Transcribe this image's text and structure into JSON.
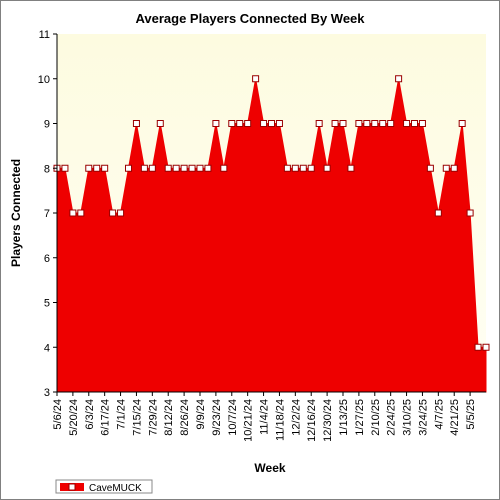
{
  "chart_data": {
    "type": "area",
    "title": "Average Players Connected By Week",
    "xlabel": "Week",
    "ylabel": "Players Connected",
    "ylim": [
      3,
      11
    ],
    "yticks": [
      3,
      4,
      5,
      6,
      7,
      8,
      9,
      10,
      11
    ],
    "grid": false,
    "legend_position": "bottom-left",
    "x_tick_labels": [
      "5/6/24",
      "5/20/24",
      "6/3/24",
      "6/17/24",
      "7/1/24",
      "7/15/24",
      "7/29/24",
      "8/12/24",
      "8/26/24",
      "9/9/24",
      "9/23/24",
      "10/7/24",
      "10/21/24",
      "11/4/24",
      "11/18/24",
      "12/2/24",
      "12/16/24",
      "12/30/24",
      "1/13/25",
      "1/27/25",
      "2/10/25",
      "2/24/25",
      "3/10/25",
      "3/24/25",
      "4/7/25",
      "4/21/25",
      "5/5/25"
    ],
    "x_tick_indices": [
      0,
      2,
      4,
      6,
      8,
      10,
      12,
      14,
      16,
      18,
      20,
      22,
      24,
      26,
      28,
      30,
      32,
      34,
      36,
      38,
      40,
      42,
      44,
      46,
      48,
      50,
      52
    ],
    "series": [
      {
        "name": "CaveMUCK",
        "color": "#ee0000",
        "values": [
          8,
          8,
          7,
          7,
          8,
          8,
          8,
          7,
          7,
          8,
          9,
          8,
          8,
          9,
          8,
          8,
          8,
          8,
          8,
          8,
          9,
          8,
          9,
          9,
          9,
          10,
          9,
          9,
          9,
          8,
          8,
          8,
          8,
          9,
          8,
          9,
          9,
          8,
          9,
          9,
          9,
          9,
          9,
          10,
          9,
          9,
          9,
          8,
          7,
          8,
          8,
          9,
          7,
          4,
          4
        ]
      }
    ],
    "colors": {
      "plot_background_top": "#fdfbe0",
      "plot_background_bottom": "#fffff4",
      "area_fill": "#ee0000",
      "marker_fill": "#ffffff",
      "marker_stroke": "#990000"
    }
  }
}
